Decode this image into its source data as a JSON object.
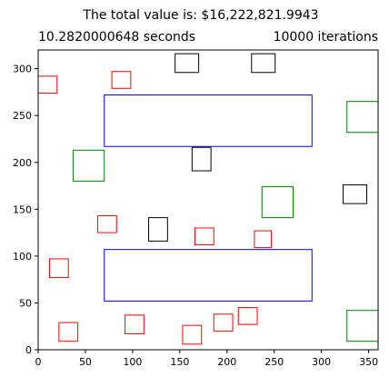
{
  "chart_data": {
    "type": "scatter",
    "title": "The total value is: $16,222,821.9943",
    "subtitle_left": "10.2820000648 seconds",
    "subtitle_right": "10000 iterations",
    "xlabel": "",
    "ylabel": "",
    "xlim": [
      0,
      360
    ],
    "ylim": [
      0,
      320
    ],
    "grid": false,
    "x_ticks": [
      0,
      50,
      100,
      150,
      200,
      250,
      300,
      350
    ],
    "y_ticks": [
      0,
      50,
      100,
      150,
      200,
      250,
      300
    ],
    "colors": {
      "red": "#ff0000",
      "green": "#008000",
      "blue": "#0000ff",
      "black": "#000000"
    },
    "rectangles": [
      {
        "color": "blue",
        "x": 70,
        "y": 217,
        "w": 220,
        "h": 55
      },
      {
        "color": "blue",
        "x": 70,
        "y": 52,
        "w": 220,
        "h": 55
      },
      {
        "color": "green",
        "x": 37,
        "y": 180,
        "w": 33,
        "h": 33
      },
      {
        "color": "green",
        "x": 237,
        "y": 141,
        "w": 33,
        "h": 33
      },
      {
        "color": "green",
        "x": 327,
        "y": 232,
        "w": 33,
        "h": 33
      },
      {
        "color": "green",
        "x": 327,
        "y": 9,
        "w": 33,
        "h": 33
      },
      {
        "color": "black",
        "x": 145,
        "y": 296,
        "w": 25,
        "h": 20
      },
      {
        "color": "black",
        "x": 226,
        "y": 296,
        "w": 25,
        "h": 20
      },
      {
        "color": "black",
        "x": 163,
        "y": 191,
        "w": 20,
        "h": 25
      },
      {
        "color": "black",
        "x": 117,
        "y": 116,
        "w": 20,
        "h": 25
      },
      {
        "color": "black",
        "x": 323,
        "y": 156,
        "w": 25,
        "h": 20
      },
      {
        "color": "red",
        "x": 0,
        "y": 274,
        "w": 20,
        "h": 18
      },
      {
        "color": "red",
        "x": 78,
        "y": 279,
        "w": 20,
        "h": 18
      },
      {
        "color": "red",
        "x": 63,
        "y": 125,
        "w": 20,
        "h": 18
      },
      {
        "color": "red",
        "x": 166,
        "y": 112,
        "w": 20,
        "h": 18
      },
      {
        "color": "red",
        "x": 229,
        "y": 109,
        "w": 18,
        "h": 18
      },
      {
        "color": "red",
        "x": 12,
        "y": 77,
        "w": 20,
        "h": 20
      },
      {
        "color": "red",
        "x": 22,
        "y": 9,
        "w": 20,
        "h": 20
      },
      {
        "color": "red",
        "x": 92,
        "y": 17,
        "w": 20,
        "h": 20
      },
      {
        "color": "red",
        "x": 153,
        "y": 6,
        "w": 20,
        "h": 20
      },
      {
        "color": "red",
        "x": 186,
        "y": 20,
        "w": 20,
        "h": 18
      },
      {
        "color": "red",
        "x": 212,
        "y": 27,
        "w": 20,
        "h": 18
      }
    ]
  }
}
